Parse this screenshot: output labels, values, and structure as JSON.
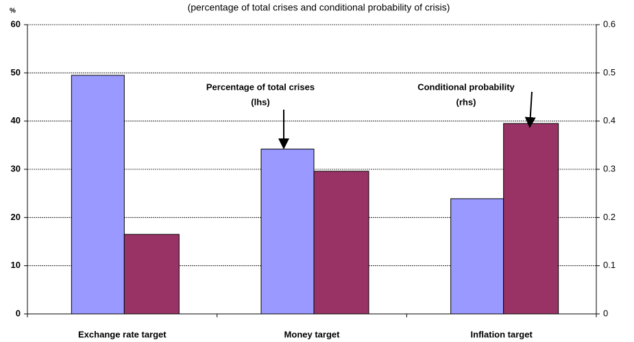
{
  "chart_data": {
    "type": "bar",
    "title": "(percentage of total crises and conditional probability of crisis)",
    "y_label": "%",
    "categories": [
      "Exchange rate target",
      "Money target",
      "Inflation target"
    ],
    "series": [
      {
        "color": "#9999ff",
        "values": [
          49.5,
          34.2,
          23.9
        ]
      },
      {
        "color": "#993366",
        "values": [
          0.165,
          0.296,
          0.395
        ],
        "axis": "y2"
      }
    ],
    "annotations": [
      {
        "lines": [
          "Percentage of total crises",
          "(lhs)"
        ]
      },
      {
        "lines": [
          "Conditional probability",
          "(rhs)"
        ]
      }
    ],
    "ylim": [
      0,
      60
    ],
    "yticks": [
      0,
      10,
      20,
      30,
      40,
      50,
      60
    ],
    "y2lim": [
      0,
      0.6
    ],
    "y2ticks": [
      0,
      0.1,
      0.2,
      0.3,
      0.4,
      0.5,
      0.6
    ],
    "grid": true
  }
}
